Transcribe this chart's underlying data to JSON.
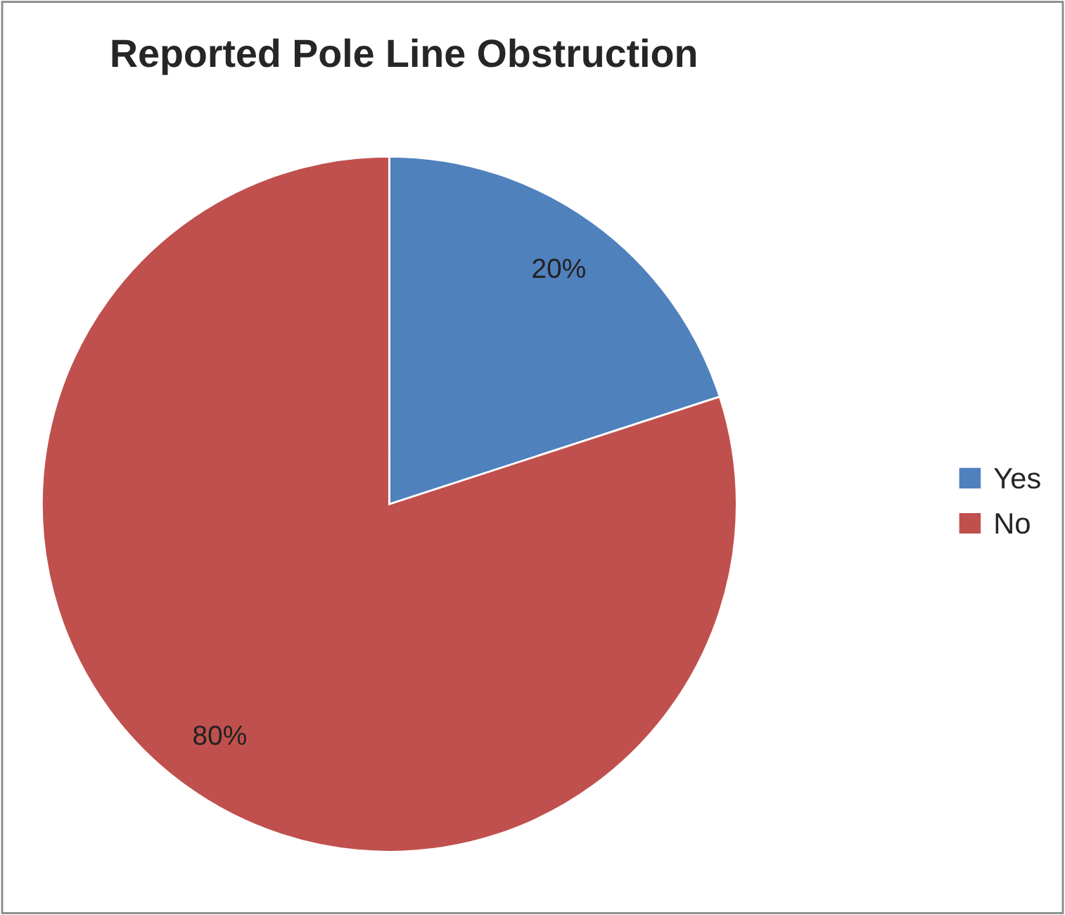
{
  "chart_data": {
    "type": "pie",
    "title": "Reported Pole Line Obstruction",
    "categories": [
      "Yes",
      "No"
    ],
    "values": [
      20,
      80
    ],
    "colors": [
      "#4f81bd",
      "#c0504d"
    ],
    "value_labels": [
      "20%",
      "80%"
    ],
    "legend": "right"
  }
}
